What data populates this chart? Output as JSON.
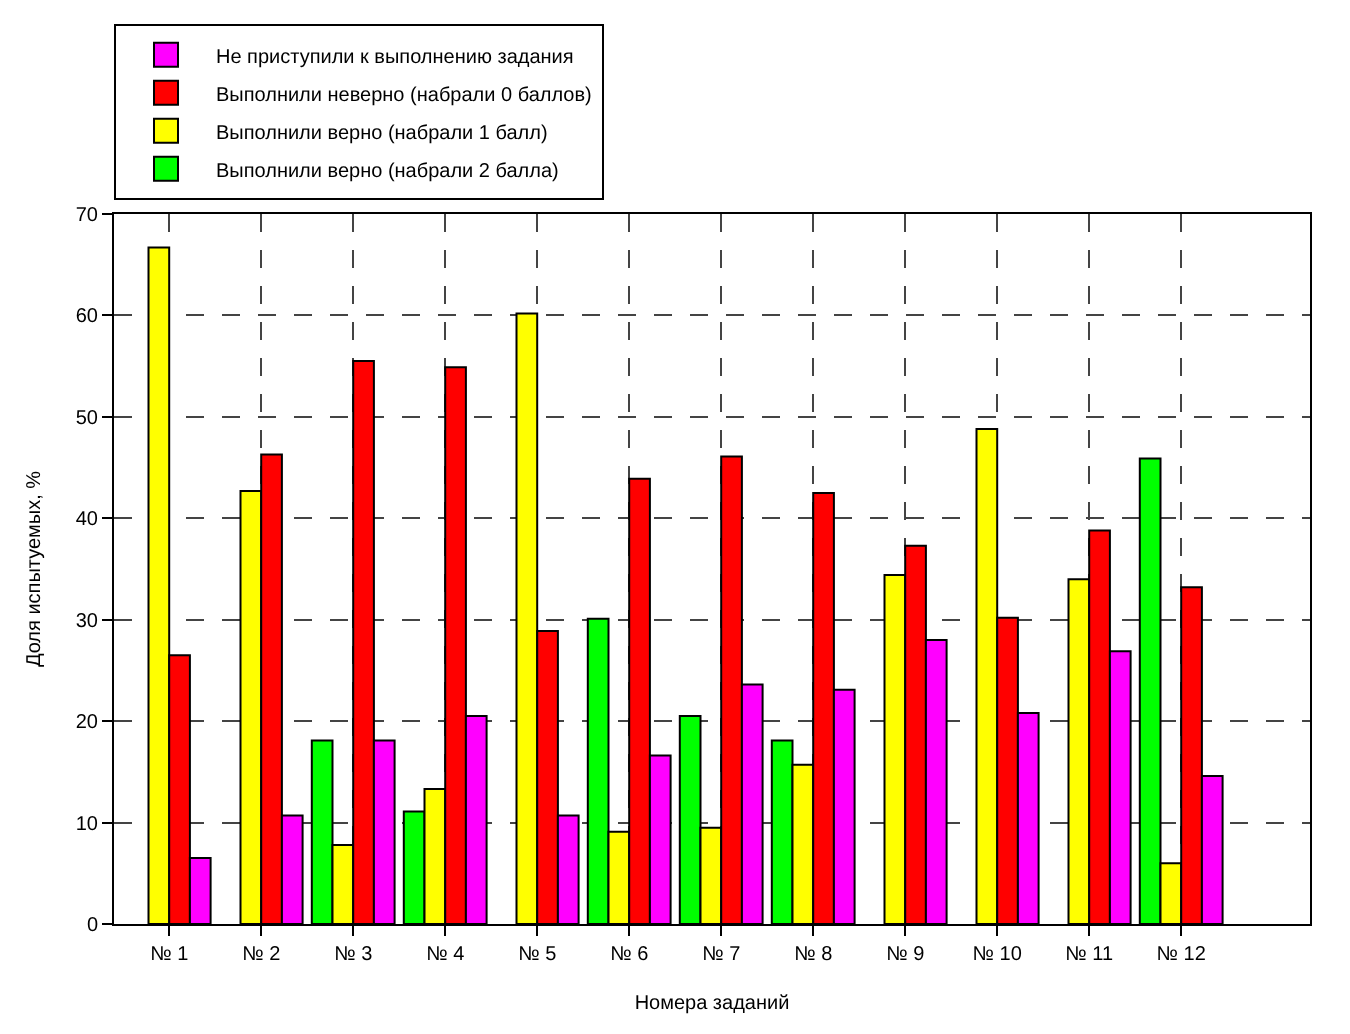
{
  "chart_data": {
    "type": "bar",
    "xlabel": "Номера заданий",
    "ylabel": "Доля испытуемых, %",
    "categories": [
      "№ 1",
      "№ 2",
      "№ 3",
      "№ 4",
      "№ 5",
      "№ 6",
      "№ 7",
      "№ 8",
      "№ 9",
      "№ 10",
      "№ 11",
      "№ 12"
    ],
    "series": [
      {
        "name": "Выполнили верно (набрали 2 балла)",
        "color": "#00ff00",
        "values": [
          null,
          null,
          18.1,
          11.1,
          null,
          30.1,
          20.5,
          18.1,
          null,
          null,
          null,
          45.9
        ]
      },
      {
        "name": "Выполнили верно (набрали 1 балл)",
        "color": "#ffff00",
        "values": [
          66.7,
          42.7,
          7.8,
          13.3,
          60.2,
          9.1,
          9.5,
          15.7,
          34.4,
          48.8,
          34.0,
          6.0
        ]
      },
      {
        "name": "Выполнили неверно (набрали 0 баллов)",
        "color": "#ff0000",
        "values": [
          26.5,
          46.3,
          55.5,
          54.9,
          28.9,
          43.9,
          46.1,
          42.5,
          37.3,
          30.2,
          38.8,
          33.2
        ]
      },
      {
        "name": "Не приступили к выполнению задания",
        "color": "#ff00ff",
        "values": [
          6.5,
          10.7,
          18.1,
          20.5,
          10.7,
          16.6,
          23.6,
          23.1,
          28.0,
          20.8,
          26.9,
          14.6
        ]
      }
    ],
    "ylim": [
      0,
      70
    ],
    "yticks": [
      0,
      10,
      20,
      30,
      40,
      50,
      60,
      70
    ],
    "grid": true,
    "legend": "top left"
  }
}
